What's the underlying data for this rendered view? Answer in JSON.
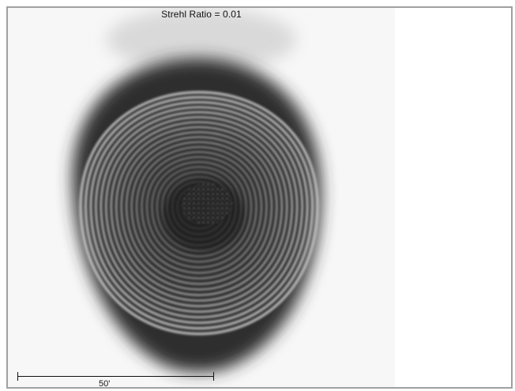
{
  "plot": {
    "title": "Strehl Ratio = 0.01",
    "scale_label": "50'"
  }
}
